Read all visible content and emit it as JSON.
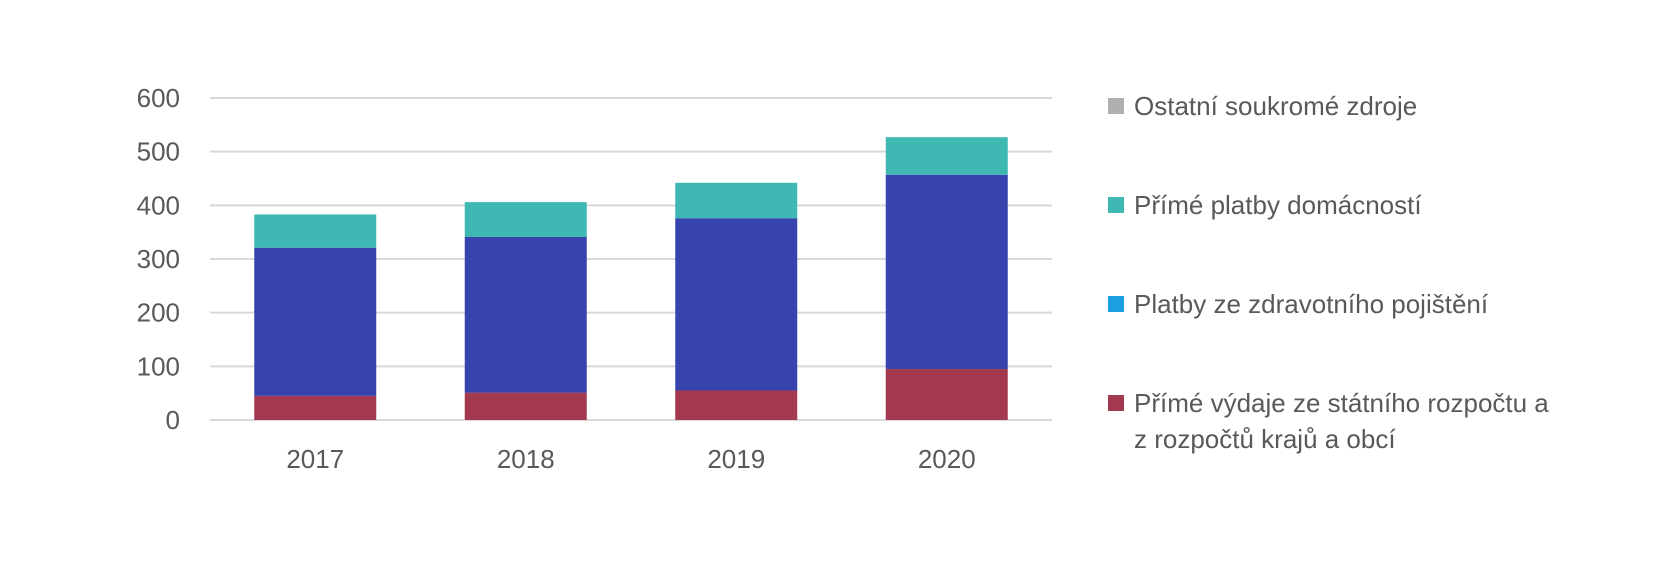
{
  "chart_data": {
    "type": "bar",
    "stacked": true,
    "categories": [
      "2017",
      "2018",
      "2019",
      "2020"
    ],
    "series": [
      {
        "name": "Přímé výdaje ze státního rozpočtu a\nz rozpočtů krajů a obcí",
        "color": "#a3394f",
        "values": [
          45,
          51,
          55,
          95
        ]
      },
      {
        "name": "Platby ze zdravotního pojištění",
        "color": "#3744ae",
        "values": [
          276,
          290,
          321,
          362
        ]
      },
      {
        "name": "Přímé platby domácností",
        "color": "#3fb8b4",
        "values": [
          62,
          65,
          66,
          70
        ]
      },
      {
        "name": "Ostatní soukromé zdroje",
        "color": "#b0b0b0",
        "values": [
          0,
          0,
          0,
          0
        ]
      }
    ],
    "y_ticks": [
      "0",
      "100",
      "200",
      "300",
      "400",
      "500",
      "600"
    ],
    "ylim": [
      0,
      600
    ],
    "grid": true,
    "legend_position": "right",
    "legend_entries": [
      {
        "label": "Ostatní soukromé zdroje",
        "color": "#b0b0b0"
      },
      {
        "label": "Přímé platby domácností",
        "color": "#3fb8b4"
      },
      {
        "label": "Platby ze zdravotního pojištění",
        "color": "#1aa0e0"
      },
      {
        "label": "Přímé výdaje ze státního rozpočtu a\nz rozpočtů krajů a obcí",
        "color": "#a3394f"
      }
    ]
  }
}
